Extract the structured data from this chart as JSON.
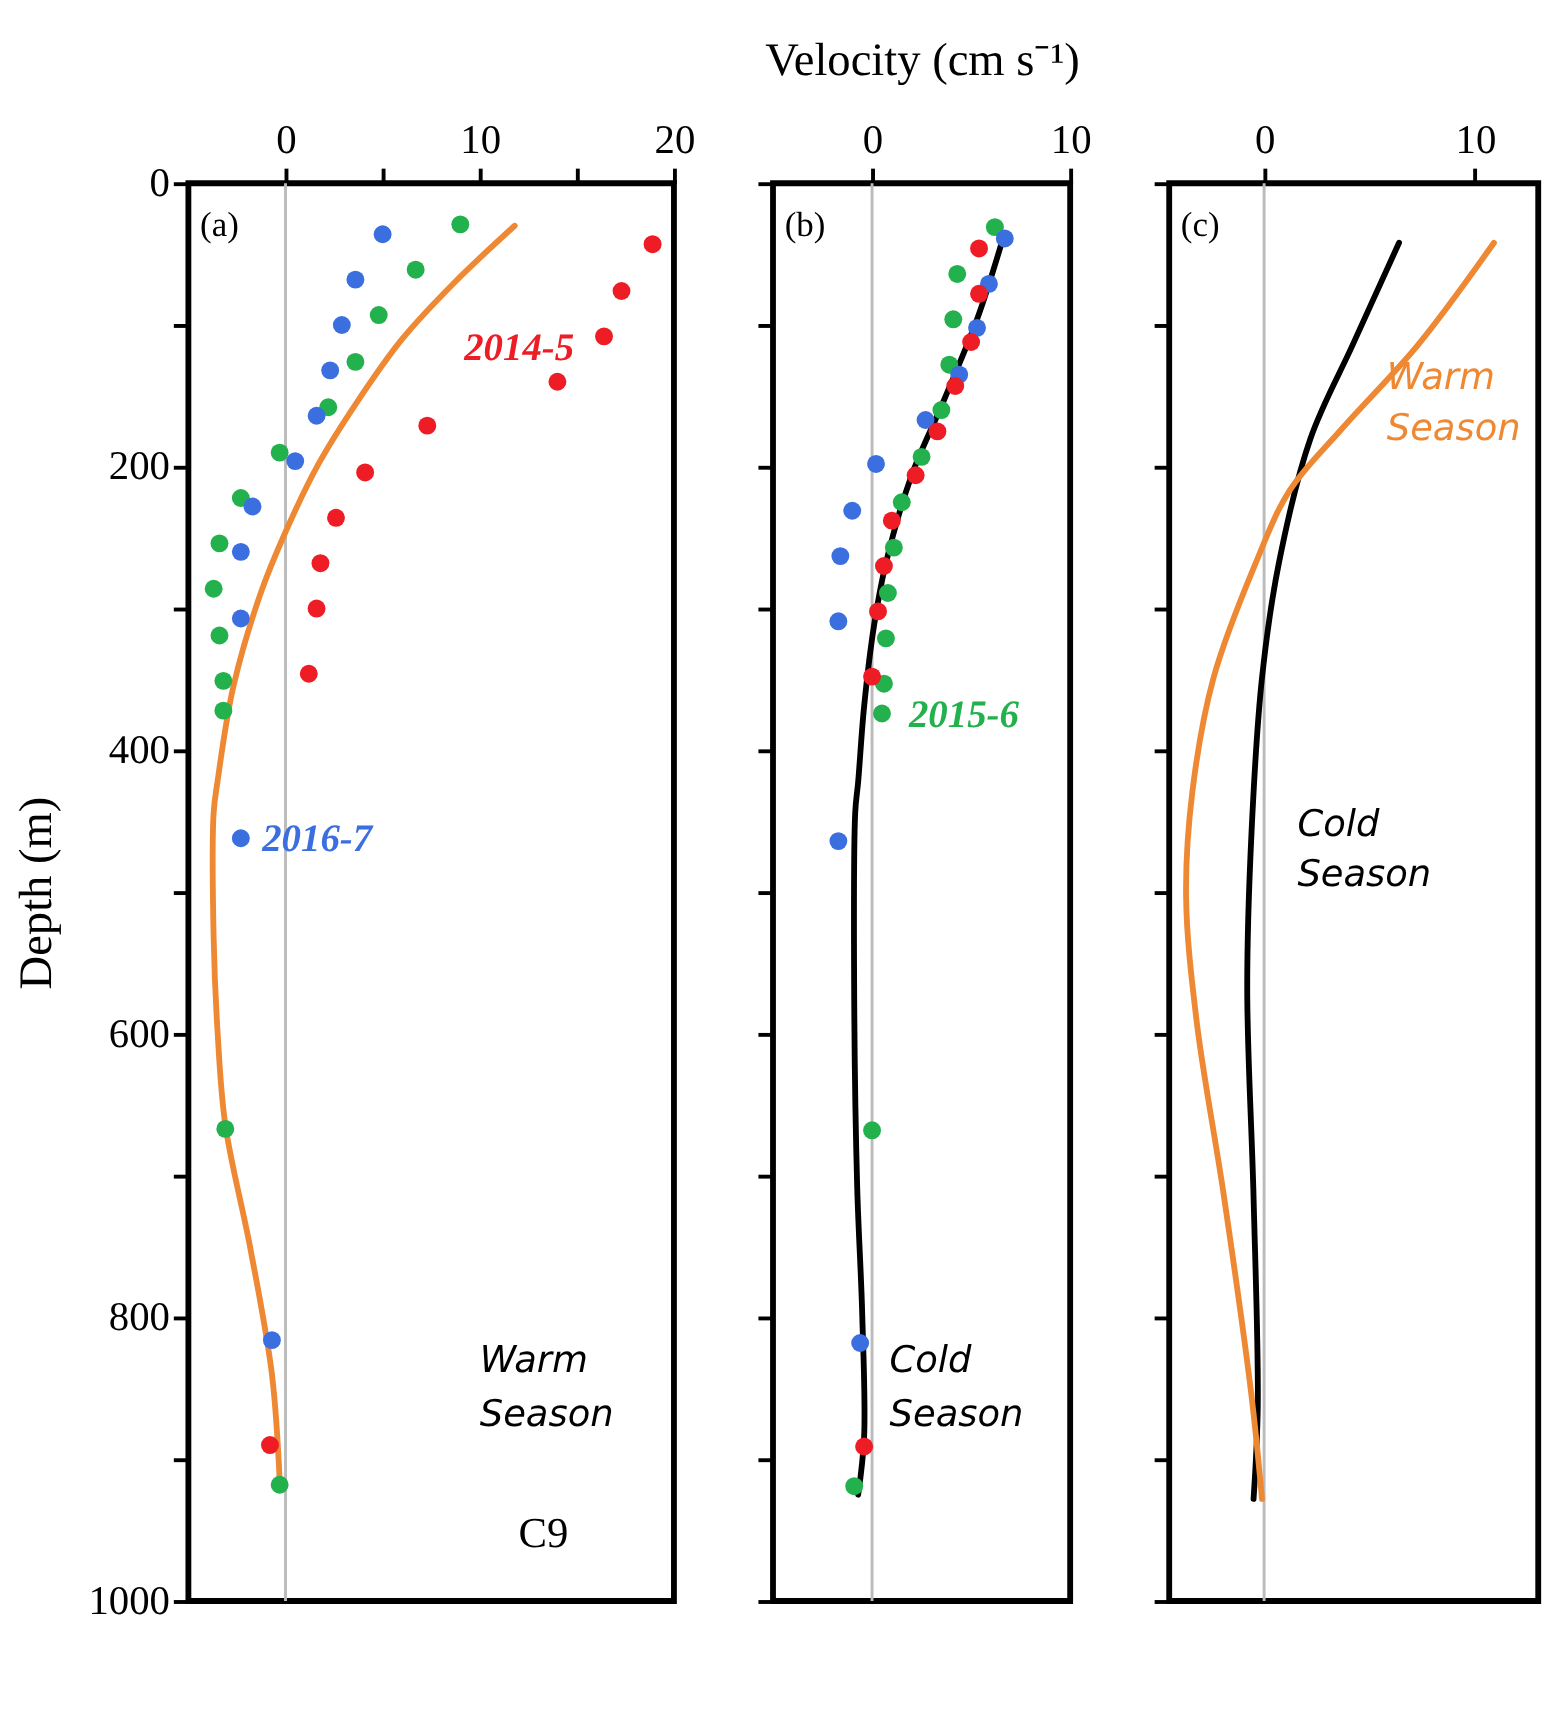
{
  "chart_data": [
    {
      "type": "scatter",
      "ylabel": "Depth (m)",
      "xlim": [
        -5,
        20
      ],
      "xticks": [
        0,
        {
          "value": 5,
          "label": null
        },
        10,
        {
          "value": 15,
          "label": null
        },
        20
      ],
      "ylim": [
        1000,
        0
      ],
      "yticks": [
        0,
        {
          "value": 100,
          "label": null
        },
        200,
        {
          "value": 300,
          "label": null
        },
        400,
        {
          "value": 500,
          "label": null
        },
        600,
        {
          "value": 700,
          "label": null
        },
        800,
        {
          "value": 900,
          "label": null
        },
        1000
      ],
      "grid": false,
      "ref_lines": [
        {
          "axis": "x",
          "value": 0,
          "color": "#bbbbbb"
        }
      ],
      "annotations": [
        "(a)",
        "Warm Season",
        "C9"
      ],
      "series": [
        {
          "name": "2014-5",
          "marker": "circle",
          "color": "#ee1c25",
          "x": [
            18.9,
            17.3,
            16.4,
            14.0,
            7.3,
            4.1,
            2.6,
            1.8,
            1.6,
            1.2,
            -0.8
          ],
          "values": [
            43,
            76,
            108,
            140,
            171,
            204,
            236,
            268,
            300,
            346,
            890
          ]
        },
        {
          "marker": "circle",
          "color": "#22b14c",
          "x": [
            9.0,
            6.7,
            4.8,
            3.6,
            2.2,
            -0.3,
            -2.3,
            -3.4,
            -3.7,
            -3.4,
            -3.2,
            -3.2,
            -3.1,
            -0.3
          ],
          "values": [
            29,
            61,
            93,
            126,
            158,
            190,
            222,
            254,
            286,
            319,
            351,
            372,
            667,
            918
          ]
        },
        {
          "name": "2016-7",
          "marker": "circle",
          "color": "#3b6fe0",
          "x": [
            5.0,
            3.6,
            2.9,
            2.3,
            1.6,
            0.5,
            -1.7,
            -2.3,
            -2.3,
            -2.3,
            -0.7
          ],
          "values": [
            36,
            68,
            100,
            132,
            164,
            196,
            228,
            260,
            307,
            462,
            816
          ]
        },
        {
          "type": "line",
          "color": "#ee8833",
          "x": [
            11.8,
            8.7,
            6.0,
            3.7,
            1.7,
            0,
            -1.3,
            -2.7,
            -3.5,
            -3.7,
            -3.7,
            -3.5,
            -3.1,
            -1.8,
            -0.7,
            -0.3
          ],
          "values": [
            30,
            70,
            110,
            154,
            198,
            246,
            290,
            356,
            422,
            444,
            532,
            598,
            664,
            752,
            840,
            915
          ]
        }
      ]
    },
    {
      "type": "scatter",
      "xlabel": "Velocity (cm s⁻¹)",
      "xlim": [
        -5,
        10
      ],
      "xticks": [
        0,
        10
      ],
      "ylim": [
        1000,
        0
      ],
      "yticks": [
        0,
        100,
        200,
        300,
        400,
        500,
        600,
        700,
        800,
        900,
        1000
      ],
      "tick_labels": "x",
      "grid": false,
      "ref_lines": [
        {
          "axis": "x",
          "value": 0,
          "color": "#bbbbbb"
        }
      ],
      "annotations": [
        "(b)",
        "Cold Season"
      ],
      "series": [
        {
          "name": "2015-6",
          "marker": "circle",
          "color": "#22b14c",
          "x": [
            6.2,
            4.3,
            4.1,
            3.9,
            3.5,
            2.5,
            1.5,
            1.1,
            0.8,
            0.7,
            0.6,
            0.5,
            0.0,
            -0.9
          ],
          "values": [
            31,
            64,
            96,
            128,
            160,
            193,
            225,
            257,
            289,
            321,
            353,
            374,
            668,
            919
          ]
        },
        {
          "marker": "circle",
          "color": "#3b6fe0",
          "x": [
            6.7,
            5.9,
            5.3,
            4.4,
            2.7,
            0.2,
            -1.0,
            -1.6,
            -1.7,
            -1.7,
            -0.6
          ],
          "values": [
            39,
            71,
            102,
            135,
            167,
            198,
            231,
            263,
            309,
            464,
            818
          ]
        },
        {
          "marker": "circle",
          "color": "#ee1c25",
          "x": [
            5.4,
            5.4,
            5.0,
            4.2,
            3.3,
            2.2,
            1.0,
            0.6,
            0.3,
            0.0,
            -0.4
          ],
          "values": [
            46,
            78,
            112,
            143,
            175,
            206,
            238,
            270,
            302,
            348,
            891
          ]
        },
        {
          "type": "line",
          "color": "#000000",
          "x": [
            6.5,
            5.3,
            3.6,
            2.0,
            0.7,
            0.1,
            -0.4,
            -0.7,
            -0.85,
            -0.9,
            -0.75,
            -0.5,
            -0.4,
            -0.7
          ],
          "values": [
            44,
            96,
            154,
            206,
            268,
            312,
            369,
            422,
            444,
            576,
            708,
            796,
            884,
            925
          ]
        }
      ]
    },
    {
      "type": "line",
      "xlim": [
        -4.5,
        13
      ],
      "xticks": [
        0,
        10
      ],
      "ylim": [
        1000,
        0
      ],
      "yticks": [
        0,
        100,
        200,
        300,
        400,
        500,
        600,
        700,
        800,
        900,
        1000
      ],
      "tick_labels": "x",
      "grid": false,
      "ref_lines": [
        {
          "axis": "x",
          "value": 0,
          "color": "#bbbbbb"
        }
      ],
      "annotations": [
        "(c)"
      ],
      "series": [
        {
          "name": "Cold Season",
          "color": "#000000",
          "x": [
            6.4,
            4.2,
            2.2,
            0.7,
            -0.1,
            -0.6,
            -0.8,
            -0.5,
            -0.3,
            -0.5
          ],
          "values": [
            42,
            114,
            180,
            268,
            349,
            459,
            569,
            715,
            862,
            928
          ]
        },
        {
          "name": "Warm Season",
          "color": "#ee8833",
          "x": [
            10.9,
            7.3,
            3.7,
            1.2,
            -0.4,
            -2.4,
            -3.4,
            -3.7,
            -3.2,
            -1.9,
            -0.6,
            -0.1
          ],
          "values": [
            42,
            114,
            173,
            217,
            268,
            349,
            429,
            503,
            591,
            715,
            855,
            928
          ]
        }
      ]
    }
  ]
}
